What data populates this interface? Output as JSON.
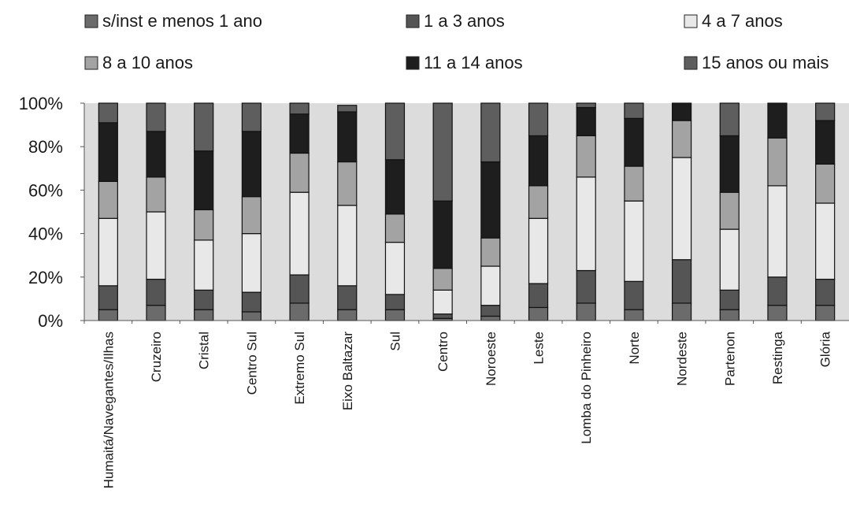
{
  "chart_data": {
    "type": "bar",
    "stacked": true,
    "normalized": true,
    "categories": [
      "Humaitá/Navegantes/Ilhas",
      "Cruzeiro",
      "Cristal",
      "Centro Sul",
      "Extremo Sul",
      "Eixo Baltazar",
      "Sul",
      "Centro",
      "Noroeste",
      "Leste",
      "Lomba do Pinheiro",
      "Norte",
      "Nordeste",
      "Partenon",
      "Restinga",
      "Glória"
    ],
    "series": [
      {
        "name": "s/inst e menos 1 ano",
        "color": "#6b6b6b",
        "values": [
          5,
          7,
          5,
          4,
          8,
          5,
          5,
          1,
          2,
          6,
          8,
          5,
          8,
          5,
          7,
          7
        ]
      },
      {
        "name": "1 a 3 anos",
        "color": "#555555",
        "values": [
          11,
          12,
          9,
          9,
          13,
          11,
          7,
          2,
          5,
          11,
          15,
          13,
          20,
          9,
          13,
          12
        ]
      },
      {
        "name": "4 a 7 anos",
        "color": "#e8e8e8",
        "values": [
          31,
          31,
          23,
          27,
          38,
          37,
          24,
          11,
          18,
          30,
          43,
          37,
          47,
          28,
          42,
          35
        ]
      },
      {
        "name": "8 a 10 anos",
        "color": "#a3a3a3",
        "values": [
          17,
          16,
          14,
          17,
          18,
          20,
          13,
          10,
          13,
          15,
          19,
          16,
          17,
          17,
          22,
          18
        ]
      },
      {
        "name": "11 a 14 anos",
        "color": "#1e1e1e",
        "values": [
          27,
          21,
          27,
          30,
          18,
          23,
          25,
          31,
          35,
          23,
          13,
          22,
          8,
          26,
          16,
          20
        ]
      },
      {
        "name": "15 anos ou mais",
        "color": "#5e5e5e",
        "values": [
          9,
          13,
          22,
          13,
          5,
          3,
          26,
          45,
          27,
          15,
          2,
          7,
          0,
          15,
          0,
          8
        ]
      }
    ],
    "y_ticks": [
      "0%",
      "20%",
      "40%",
      "60%",
      "80%",
      "100%"
    ],
    "ylim": [
      0,
      100
    ],
    "grid": false,
    "legend_position": "top"
  }
}
